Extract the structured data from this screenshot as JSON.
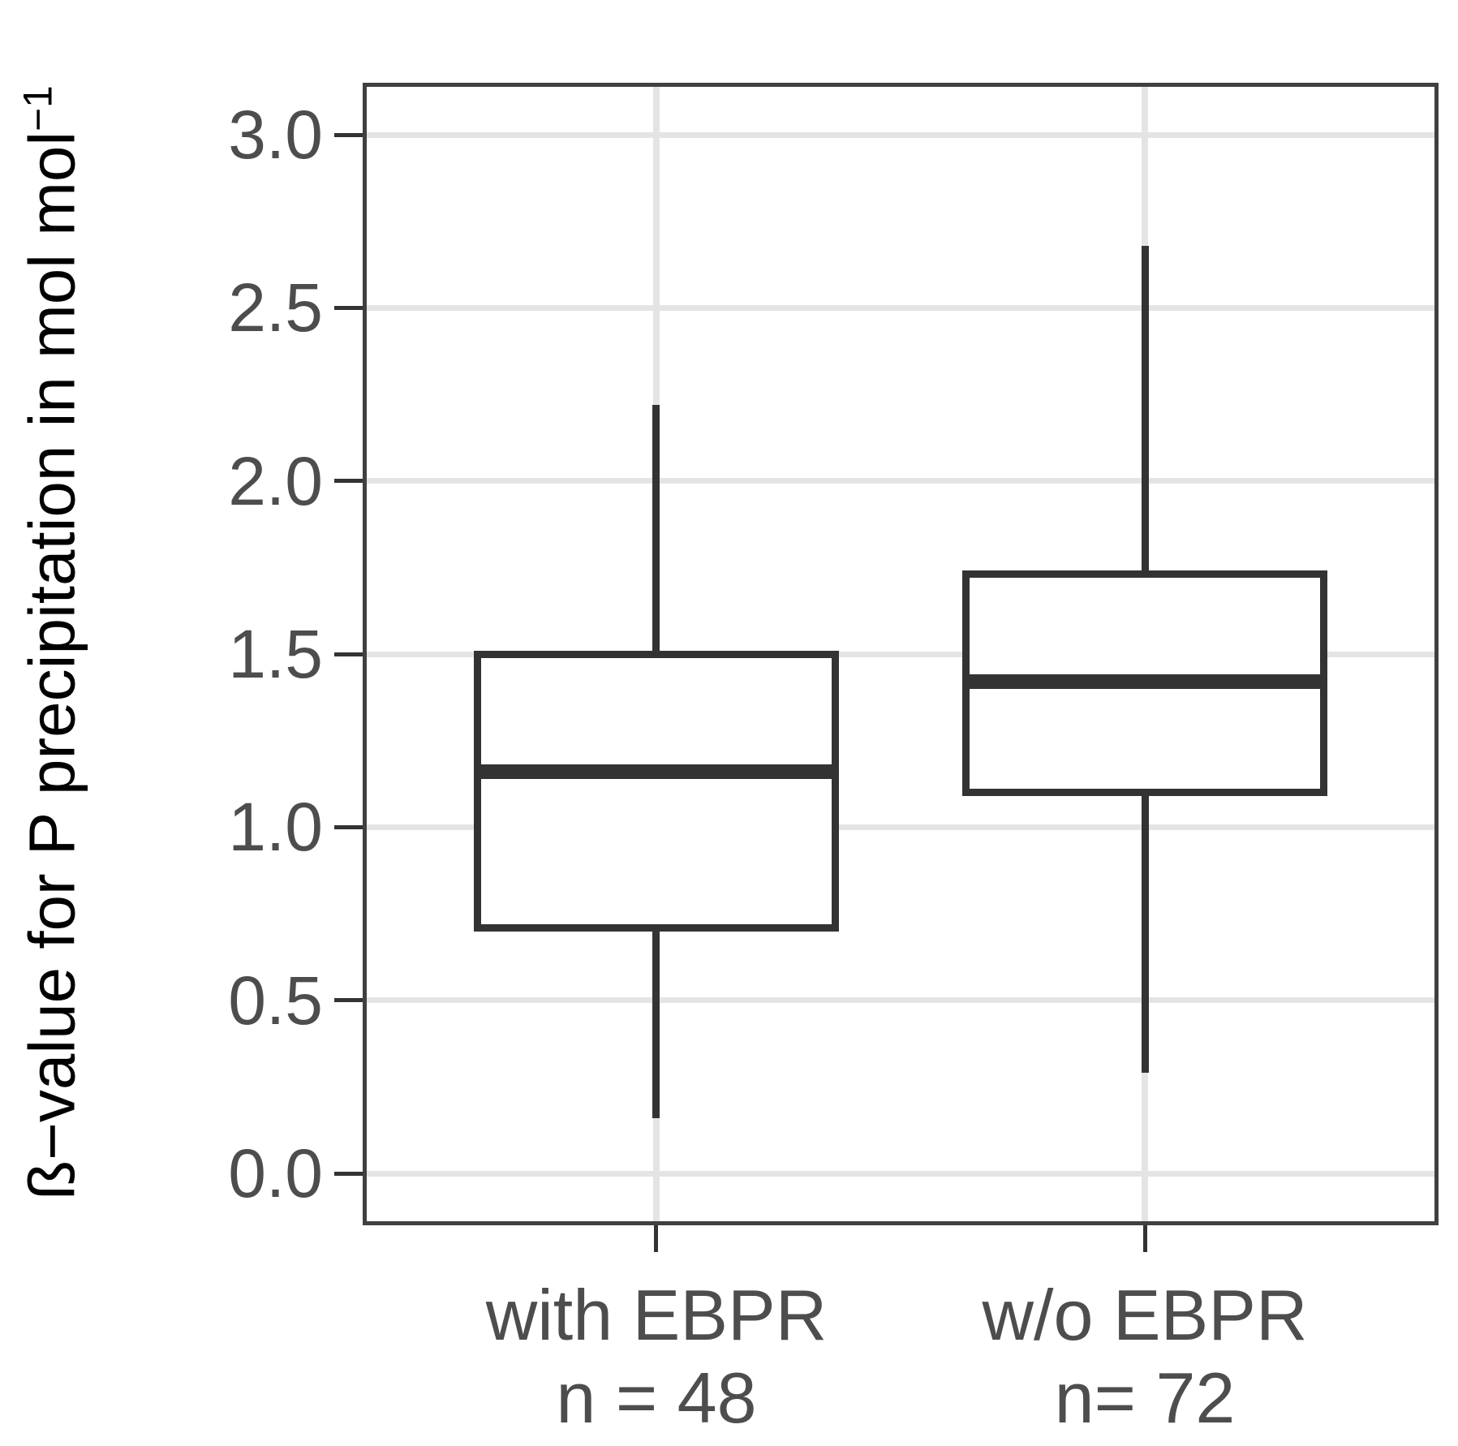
{
  "chart_data": {
    "type": "boxplot",
    "title": "",
    "ylabel_main": "ß−value for P precipitation in mol mol",
    "ylabel_sup": "−1",
    "xlabel": "",
    "y_ticks": [
      {
        "value": 0.0,
        "label": "0.0"
      },
      {
        "value": 0.5,
        "label": "0.5"
      },
      {
        "value": 1.0,
        "label": "1.0"
      },
      {
        "value": 1.5,
        "label": "1.5"
      },
      {
        "value": 2.0,
        "label": "2.0"
      },
      {
        "value": 2.5,
        "label": "2.5"
      },
      {
        "value": 3.0,
        "label": "3.0"
      }
    ],
    "ylim": [
      -0.15,
      3.15
    ],
    "grid": true,
    "legend": "none",
    "box_width_frac": 0.34,
    "categories": [
      {
        "id": "with-ebpr",
        "label_line1": "with EBPR",
        "label_line2": "n = 48",
        "center_frac": 0.273,
        "whisker_low": 0.16,
        "q1": 0.71,
        "median": 1.16,
        "q3": 1.5,
        "whisker_high": 2.22
      },
      {
        "id": "wo-ebpr",
        "label_line1": "w/o EBPR",
        "label_line2": "n= 72",
        "center_frac": 0.727,
        "whisker_low": 0.29,
        "q1": 1.1,
        "median": 1.42,
        "q3": 1.73,
        "whisker_high": 2.68
      }
    ],
    "colors": {
      "stroke": "#333333",
      "panel_border": "#404040",
      "grid": "#e4e4e4",
      "axis_text": "#4d4d4d",
      "axis_title": "#000000",
      "background": "#ffffff",
      "box_fill": "#ffffff"
    }
  }
}
